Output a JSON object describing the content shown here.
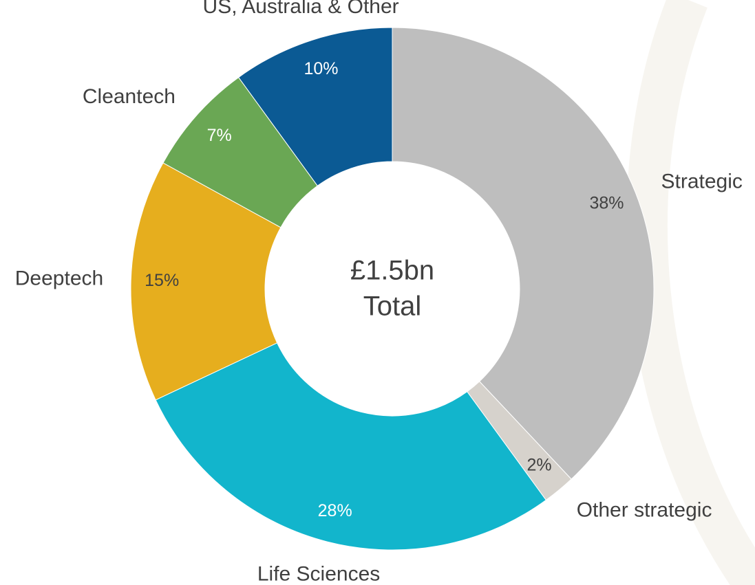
{
  "chart_data": {
    "type": "donut",
    "center_label": [
      "£1.5bn",
      "Total"
    ],
    "categories": [
      "Strategic",
      "Other strategic",
      "Life Sciences",
      "Deeptech",
      "Cleantech",
      "US, Australia & Other"
    ],
    "values": [
      38,
      2,
      28,
      15,
      7,
      10
    ],
    "value_labels": [
      "38%",
      "2%",
      "28%",
      "15%",
      "7%",
      "10%"
    ],
    "colors": [
      "#bebebe",
      "#d6d2cc",
      "#12b5cc",
      "#e6ae1e",
      "#6aa754",
      "#0b5a94"
    ],
    "value_label_colors": [
      "#404040",
      "#404040",
      "#ffffff",
      "#404040",
      "#ffffff",
      "#ffffff"
    ]
  }
}
